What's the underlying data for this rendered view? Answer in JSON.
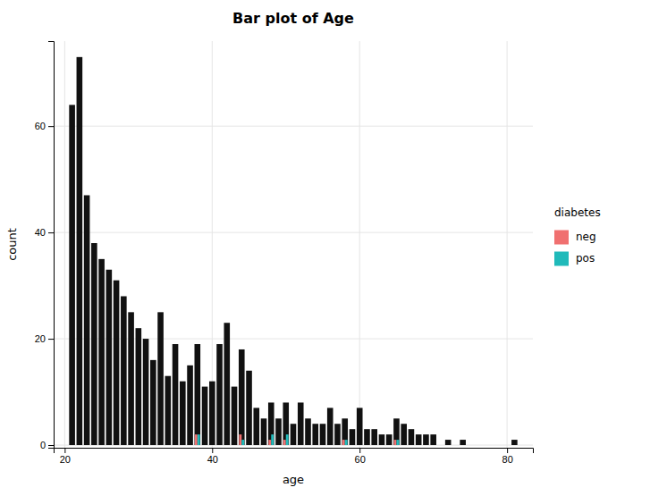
{
  "chart_data": {
    "type": "bar",
    "title": "Bar plot of Age",
    "xlabel": "age",
    "ylabel": "count",
    "legend_title": "diabetes",
    "legend": "right",
    "grid": true,
    "xlim": [
      18.5,
      83.5
    ],
    "ylim": [
      -0.5,
      76
    ],
    "xticks": [
      20,
      40,
      60,
      80
    ],
    "yticks": [
      0,
      20,
      40,
      60
    ],
    "x": [
      21,
      22,
      23,
      24,
      25,
      26,
      27,
      28,
      29,
      30,
      31,
      32,
      33,
      34,
      35,
      36,
      37,
      38,
      39,
      40,
      41,
      42,
      43,
      44,
      45,
      46,
      47,
      48,
      49,
      50,
      51,
      52,
      53,
      54,
      55,
      56,
      57,
      58,
      59,
      60,
      61,
      62,
      63,
      64,
      65,
      66,
      67,
      68,
      69,
      70,
      72,
      74,
      81
    ],
    "series": [
      {
        "color": "#111111",
        "values": [
          64,
          73,
          47,
          38,
          35,
          33,
          31,
          28,
          25,
          22,
          20,
          16,
          25,
          13,
          19,
          12,
          15,
          19,
          11,
          12,
          19,
          23,
          11,
          18,
          14,
          7,
          5,
          8,
          5,
          8,
          4,
          8,
          5,
          4,
          4,
          7,
          4,
          5,
          3,
          7,
          3,
          3,
          2,
          2,
          5,
          4,
          3,
          2,
          2,
          2,
          1,
          1,
          1
        ]
      },
      {
        "name": "neg",
        "color": "#F07070",
        "values": [
          null,
          null,
          null,
          null,
          null,
          null,
          null,
          null,
          null,
          null,
          null,
          null,
          null,
          null,
          null,
          null,
          null,
          2,
          null,
          null,
          null,
          null,
          null,
          2,
          null,
          null,
          null,
          1,
          null,
          1,
          null,
          null,
          null,
          null,
          null,
          null,
          null,
          1,
          null,
          null,
          null,
          null,
          null,
          null,
          1,
          null,
          null,
          null,
          null,
          null,
          null,
          null,
          null
        ]
      },
      {
        "name": "pos",
        "color": "#20BABA",
        "values": [
          null,
          null,
          null,
          null,
          null,
          null,
          null,
          null,
          null,
          null,
          null,
          null,
          null,
          null,
          null,
          null,
          null,
          2,
          null,
          null,
          null,
          null,
          null,
          1,
          null,
          null,
          null,
          2,
          null,
          2,
          null,
          null,
          null,
          null,
          null,
          null,
          null,
          1,
          null,
          null,
          null,
          null,
          null,
          null,
          1,
          null,
          null,
          null,
          null,
          null,
          null,
          null,
          null
        ]
      }
    ]
  }
}
